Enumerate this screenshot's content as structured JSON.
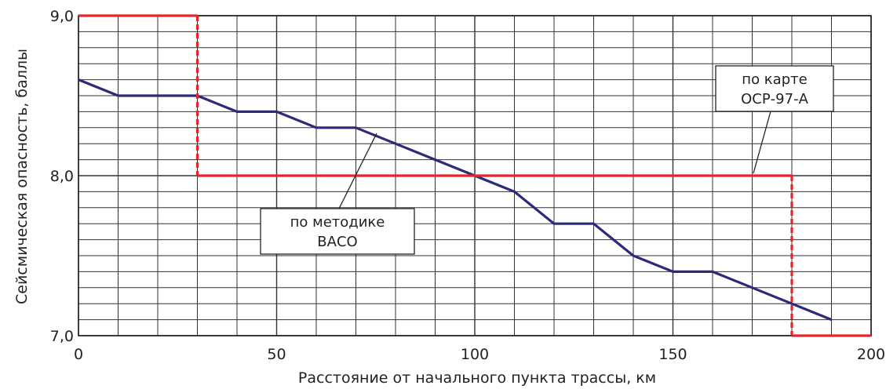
{
  "chart_data": {
    "type": "line",
    "xlabel": "Расстояние от начального пункта трассы, км",
    "ylabel": "Сейсмическая опасность, баллы",
    "xlim": [
      0,
      200
    ],
    "ylim": [
      7.0,
      9.0
    ],
    "x_ticks": [
      "0",
      "50",
      "100",
      "150",
      "200"
    ],
    "y_ticks": [
      "7,0",
      "8,0",
      "9,0"
    ],
    "x_tick_values": [
      0,
      50,
      100,
      150,
      200
    ],
    "y_tick_values": [
      7.0,
      8.0,
      9.0
    ],
    "grid": true,
    "series": [
      {
        "name": "по методике ВАСО",
        "color": "#2e2a7a",
        "style": "solid",
        "x": [
          0,
          10,
          30,
          40,
          50,
          60,
          70,
          80,
          90,
          100,
          110,
          120,
          130,
          140,
          150,
          160,
          170,
          180,
          190
        ],
        "y": [
          8.6,
          8.5,
          8.5,
          8.4,
          8.4,
          8.3,
          8.3,
          8.2,
          8.1,
          8.0,
          7.9,
          7.7,
          7.7,
          7.5,
          7.4,
          7.4,
          7.3,
          7.2,
          7.1
        ]
      },
      {
        "name": "по карте ОСР-97-А",
        "color": "#e3262e",
        "style": "step",
        "x": [
          0,
          30,
          30,
          180,
          180,
          200
        ],
        "y": [
          9.0,
          9.0,
          8.0,
          8.0,
          7.0,
          7.0
        ]
      }
    ],
    "annotations": [
      {
        "lines": [
          "по методике",
          "ВАСО"
        ],
        "series": 0
      },
      {
        "lines": [
          "по карте",
          "ОСР-97-А"
        ],
        "series": 1
      }
    ]
  }
}
